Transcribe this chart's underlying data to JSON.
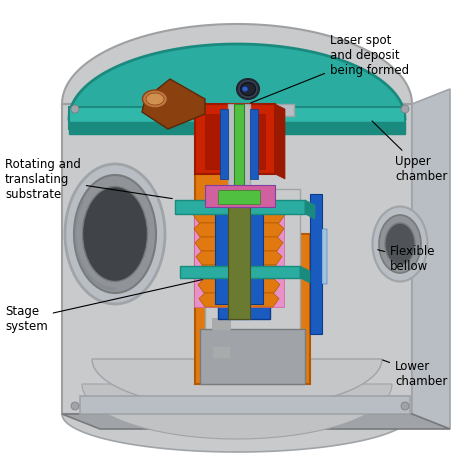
{
  "bg_color": "#ffffff",
  "labels": {
    "laser_spot": "Laser spot\nand deposit\nbeing formed",
    "upper_chamber": "Upper\nchamber",
    "rotating": "Rotating and\ntranslating\nsubstrate",
    "flexible_bellow": "Flexible\nbellow",
    "stage_system": "Stage\nsystem",
    "lower_chamber": "Lower\nchamber"
  },
  "colors": {
    "outer_body": "#d2d4d6",
    "outer_edge": "#9fa0a2",
    "teal": "#2aada0",
    "teal_dark": "#1a8a7e",
    "teal_mid": "#30b8aa",
    "red": "#cc2200",
    "red_dark": "#991a00",
    "orange": "#e07a10",
    "orange_dark": "#b35800",
    "green_bright": "#50c040",
    "green_dark": "#3a7a28",
    "green_olive": "#6a7a30",
    "blue": "#1a5bbf",
    "blue_dark": "#0d3a8a",
    "pink": "#d060a0",
    "pink_light": "#e890c8",
    "gray_light": "#c8cacc",
    "gray_mid": "#a0a4a8",
    "gray_dark": "#787a7c",
    "silver": "#b8bec4",
    "white_ish": "#e8eaec",
    "brown": "#8b4010",
    "blue_cyan": "#30a0c8",
    "purple": "#8040a0",
    "slate": "#506080"
  }
}
